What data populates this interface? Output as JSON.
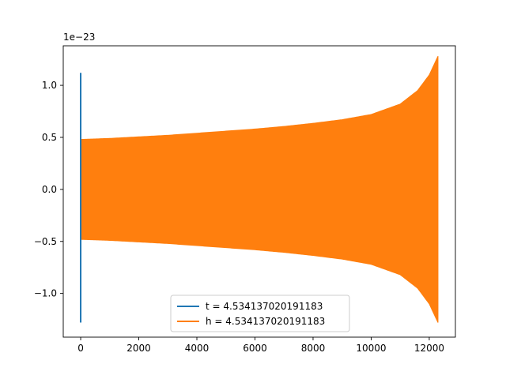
{
  "chart_data": {
    "type": "line",
    "title": "",
    "xlabel": "",
    "ylabel": "",
    "y_offset_label": "1e−23",
    "xlim": [
      -600,
      12900
    ],
    "ylim": [
      -1.42,
      1.38
    ],
    "y_scale_note": "values shown in units of 1e-23",
    "x_ticks": [
      0,
      2000,
      4000,
      6000,
      8000,
      10000,
      12000
    ],
    "x_tick_labels": [
      "0",
      "2000",
      "4000",
      "6000",
      "8000",
      "10000",
      "12000"
    ],
    "y_ticks": [
      -1.0,
      -0.5,
      0.0,
      0.5,
      1.0
    ],
    "y_tick_labels": [
      "−1.0",
      "−0.5",
      "0.0",
      "0.5",
      "1.0"
    ],
    "grid": false,
    "legend_position": "lower-center",
    "series": [
      {
        "name": "t = 4.534137020191183",
        "color": "#1f77b4",
        "kind": "spike",
        "x": [
          0,
          0
        ],
        "y": [
          -1.28,
          1.12
        ]
      },
      {
        "name": "h = 4.534137020191183",
        "color": "#ff7f0e",
        "kind": "chirp-envelope",
        "x_start": 0,
        "x_end": 12300,
        "envelope": [
          [
            0,
            0.48
          ],
          [
            1000,
            0.49
          ],
          [
            2000,
            0.505
          ],
          [
            3000,
            0.52
          ],
          [
            4000,
            0.54
          ],
          [
            5000,
            0.56
          ],
          [
            6000,
            0.58
          ],
          [
            7000,
            0.605
          ],
          [
            8000,
            0.635
          ],
          [
            9000,
            0.67
          ],
          [
            10000,
            0.72
          ],
          [
            11000,
            0.82
          ],
          [
            11600,
            0.95
          ],
          [
            12000,
            1.1
          ],
          [
            12300,
            1.28
          ]
        ]
      }
    ]
  }
}
